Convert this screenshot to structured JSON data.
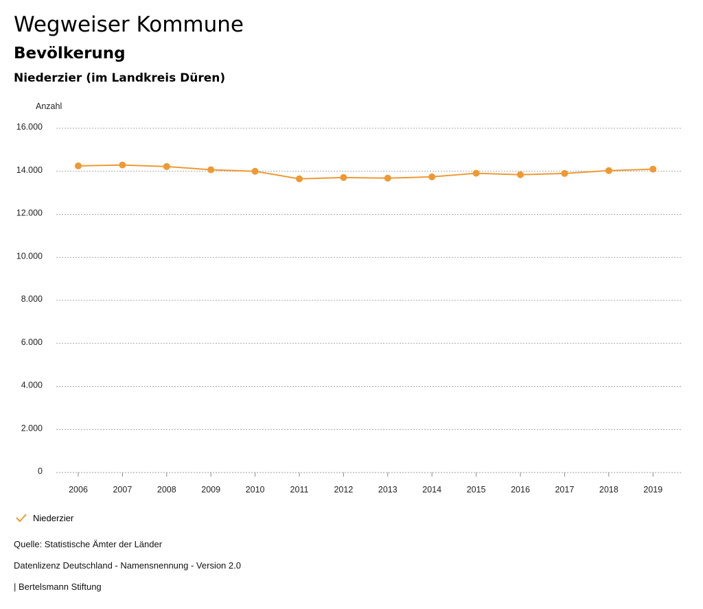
{
  "header": {
    "title": "Wegweiser Kommune",
    "subtitle": "Bevölkerung",
    "region": "Niederzier (im Landkreis Düren)"
  },
  "chart_data": {
    "type": "line",
    "title": "Bevölkerung",
    "ylabel": "Anzahl",
    "xlabel": "",
    "ylim": [
      0,
      16000
    ],
    "yticks": [
      0,
      2000,
      4000,
      6000,
      8000,
      10000,
      12000,
      14000,
      16000
    ],
    "ytick_labels": [
      "0",
      "2.000",
      "4.000",
      "6.000",
      "8.000",
      "10.000",
      "12.000",
      "14.000",
      "16.000"
    ],
    "categories": [
      "2006",
      "2007",
      "2008",
      "2009",
      "2010",
      "2011",
      "2012",
      "2013",
      "2014",
      "2015",
      "2016",
      "2017",
      "2018",
      "2019"
    ],
    "series": [
      {
        "name": "Niederzier",
        "color": "#ee9933",
        "values": [
          14250,
          14290,
          14220,
          14070,
          14000,
          13650,
          13710,
          13680,
          13740,
          13910,
          13840,
          13900,
          14030,
          14100
        ]
      }
    ],
    "grid": true,
    "legend_position": "bottom-left"
  },
  "legend": {
    "label": "Niederzier",
    "icon": "check-icon"
  },
  "footer": {
    "source": "Quelle: Statistische Ämter der Länder",
    "license": "Datenlizenz Deutschland - Namensnennung - Version 2.0",
    "credit": "| Bertelsmann Stiftung"
  }
}
